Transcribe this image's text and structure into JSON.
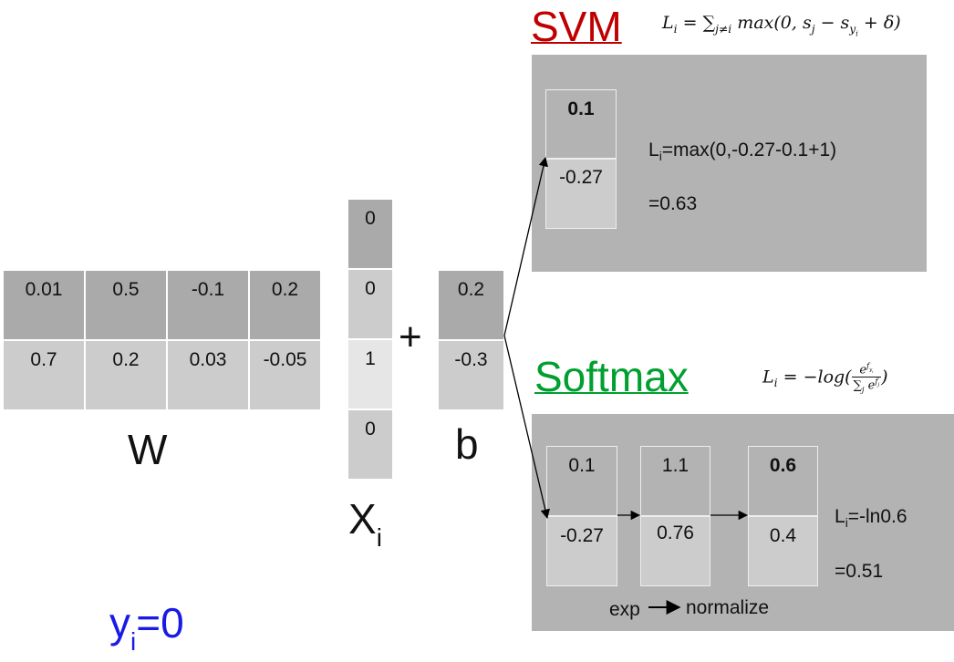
{
  "weights": {
    "label": "W",
    "row1": [
      "0.01",
      "0.5",
      "-0.1",
      "0.2"
    ],
    "row2": [
      "0.7",
      "0.2",
      "0.03",
      "-0.05"
    ]
  },
  "input": {
    "label": "X",
    "label_sub": "i",
    "values": [
      "0",
      "0",
      "1",
      "0"
    ]
  },
  "plus_sign": "+",
  "bias": {
    "label": "b",
    "values": [
      "0.2",
      "-0.3"
    ]
  },
  "true_class": {
    "y": "y",
    "sub": "i",
    "eq": "=0"
  },
  "svm": {
    "title": "SVM",
    "title_color": "#c00000",
    "formula": {
      "lhs": "L",
      "lhs_sub": "i",
      "eq": " = ∑",
      "sum_sub": "j≠i",
      "body": " max(0, s",
      "sj": "j",
      "mid": " − s",
      "syi": "y",
      "syi_sub": "i",
      "tail": " + δ)"
    },
    "scores": [
      "0.1",
      "-0.27"
    ],
    "calc_prefix": "L",
    "calc_sub": "i",
    "calc_expr": "=max(0,-0.27-0.1+1)",
    "result": "=0.63"
  },
  "softmax": {
    "title": "Softmax",
    "title_color": "#00a030",
    "formula": {
      "lhs": "L",
      "lhs_sub": "i",
      "eq": " = −log(",
      "num_e": "e",
      "num_sup": "f",
      "num_sup_sub": "y",
      "num_sup_sub2": "i",
      "den_sum": "∑",
      "den_sub": "j",
      "den_e": " e",
      "den_sup": "f",
      "den_sup_sub": "j",
      "close": ")"
    },
    "scores": [
      "0.1",
      "-0.27"
    ],
    "exp_values": [
      "1.1",
      "0.76"
    ],
    "normalized": [
      "0.6",
      "0.4"
    ],
    "calc_prefix": "L",
    "calc_sub": "i",
    "calc_expr": "=-ln0.6",
    "result": "=0.51",
    "step1": "exp",
    "step2": "normalize"
  }
}
